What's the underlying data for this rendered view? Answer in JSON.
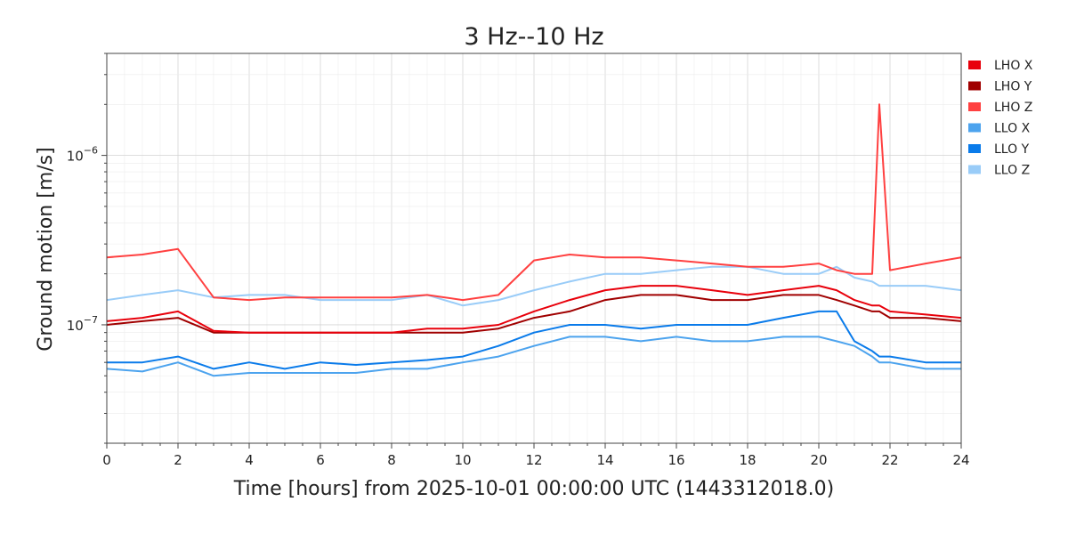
{
  "chart_data": {
    "type": "line",
    "title": "3 Hz--10 Hz",
    "xlabel": "Time [hours] from 2025-10-01 00:00:00 UTC (1443312018.0)",
    "ylabel": "Ground motion [m/s]",
    "x_scale": "linear",
    "y_scale": "log",
    "xlim": [
      0,
      24
    ],
    "ylim": [
      2e-08,
      4e-06
    ],
    "x_ticks": [
      0,
      2,
      4,
      6,
      8,
      10,
      12,
      14,
      16,
      18,
      20,
      22,
      24
    ],
    "x_tick_labels": [
      "0",
      "2",
      "4",
      "6",
      "8",
      "10",
      "12",
      "14",
      "16",
      "18",
      "20",
      "22",
      "24"
    ],
    "y_ticks": [
      {
        "value": 1e-07,
        "base": "10",
        "exp": "−7"
      },
      {
        "value": 1e-06,
        "base": "10",
        "exp": "−6"
      }
    ],
    "grid": true,
    "legend_position": "right-top",
    "x": [
      0,
      1,
      2,
      3,
      4,
      5,
      6,
      7,
      8,
      9,
      10,
      11,
      12,
      13,
      14,
      15,
      16,
      17,
      18,
      19,
      20,
      20.5,
      21,
      21.5,
      21.7,
      22,
      23,
      24
    ],
    "series": [
      {
        "name": "LHO X",
        "color": "#e8000b",
        "values": [
          1.05e-07,
          1.1e-07,
          1.2e-07,
          9.2e-08,
          9e-08,
          9e-08,
          9e-08,
          9e-08,
          9e-08,
          9.5e-08,
          9.5e-08,
          1e-07,
          1.2e-07,
          1.4e-07,
          1.6e-07,
          1.7e-07,
          1.7e-07,
          1.6e-07,
          1.5e-07,
          1.6e-07,
          1.7e-07,
          1.6e-07,
          1.4e-07,
          1.3e-07,
          1.3e-07,
          1.2e-07,
          1.15e-07,
          1.1e-07
        ]
      },
      {
        "name": "LHO Y",
        "color": "#a00000",
        "values": [
          1e-07,
          1.05e-07,
          1.1e-07,
          9e-08,
          9e-08,
          9e-08,
          9e-08,
          9e-08,
          9e-08,
          9e-08,
          9e-08,
          9.5e-08,
          1.1e-07,
          1.2e-07,
          1.4e-07,
          1.5e-07,
          1.5e-07,
          1.4e-07,
          1.4e-07,
          1.5e-07,
          1.5e-07,
          1.4e-07,
          1.3e-07,
          1.2e-07,
          1.2e-07,
          1.1e-07,
          1.1e-07,
          1.05e-07
        ]
      },
      {
        "name": "LHO Z",
        "color": "#ff4040",
        "values": [
          2.5e-07,
          2.6e-07,
          2.8e-07,
          1.45e-07,
          1.4e-07,
          1.45e-07,
          1.45e-07,
          1.45e-07,
          1.45e-07,
          1.5e-07,
          1.4e-07,
          1.5e-07,
          2.4e-07,
          2.6e-07,
          2.5e-07,
          2.5e-07,
          2.4e-07,
          2.3e-07,
          2.2e-07,
          2.2e-07,
          2.3e-07,
          2.1e-07,
          2e-07,
          2e-07,
          2e-06,
          2.1e-07,
          2.3e-07,
          2.5e-07
        ]
      },
      {
        "name": "LLO X",
        "color": "#4ca3ee",
        "values": [
          5.5e-08,
          5.3e-08,
          6e-08,
          5e-08,
          5.2e-08,
          5.2e-08,
          5.2e-08,
          5.2e-08,
          5.5e-08,
          5.5e-08,
          6e-08,
          6.5e-08,
          7.5e-08,
          8.5e-08,
          8.5e-08,
          8e-08,
          8.5e-08,
          8e-08,
          8e-08,
          8.5e-08,
          8.5e-08,
          8e-08,
          7.5e-08,
          6.5e-08,
          6e-08,
          6e-08,
          5.5e-08,
          5.5e-08
        ]
      },
      {
        "name": "LLO Y",
        "color": "#0a7bea",
        "values": [
          6e-08,
          6e-08,
          6.5e-08,
          5.5e-08,
          6e-08,
          5.5e-08,
          6e-08,
          5.8e-08,
          6e-08,
          6.2e-08,
          6.5e-08,
          7.5e-08,
          9e-08,
          1e-07,
          1e-07,
          9.5e-08,
          1e-07,
          1e-07,
          1e-07,
          1.1e-07,
          1.2e-07,
          1.2e-07,
          8e-08,
          7e-08,
          6.5e-08,
          6.5e-08,
          6e-08,
          6e-08
        ]
      },
      {
        "name": "LLO Z",
        "color": "#99ccf8",
        "values": [
          1.4e-07,
          1.5e-07,
          1.6e-07,
          1.45e-07,
          1.5e-07,
          1.5e-07,
          1.4e-07,
          1.4e-07,
          1.4e-07,
          1.5e-07,
          1.3e-07,
          1.4e-07,
          1.6e-07,
          1.8e-07,
          2e-07,
          2e-07,
          2.1e-07,
          2.2e-07,
          2.2e-07,
          2e-07,
          2e-07,
          2.2e-07,
          1.9e-07,
          1.8e-07,
          1.7e-07,
          1.7e-07,
          1.7e-07,
          1.6e-07
        ]
      }
    ],
    "annotations": []
  }
}
